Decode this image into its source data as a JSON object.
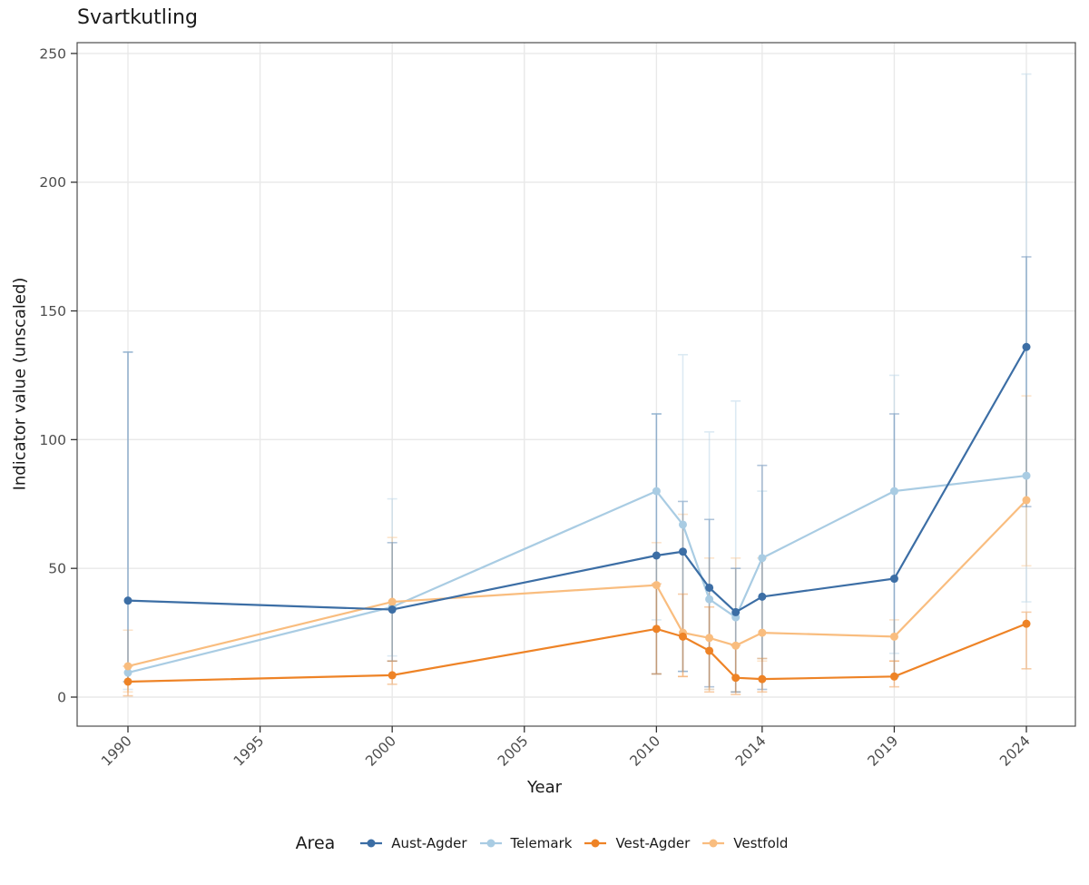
{
  "title": "Svartkutling",
  "axes": {
    "x_label": "Year",
    "y_label": "Indicator value (unscaled)",
    "x_ticks": [
      1990,
      1995,
      2000,
      2005,
      2010,
      2014,
      2019,
      2024
    ],
    "y_ticks": [
      0,
      50,
      100,
      150,
      200,
      250
    ],
    "x_range": [
      1988.1,
      2025.9
    ],
    "y_range": [
      0,
      250
    ]
  },
  "legend": {
    "title": "Area",
    "position": "bottom"
  },
  "style_colors": {
    "grid": "#e9e9e9",
    "panel_border": "#4d4d4d",
    "tick_mark": "#333333",
    "tick_text": "#4d4d4d",
    "error_bar_opacity": 0.4
  },
  "chart_data": {
    "type": "line",
    "title": "Svartkutling",
    "xlabel": "Year",
    "ylabel": "Indicator value (unscaled)",
    "grid": true,
    "legend_position": "bottom",
    "x": [
      1990,
      2000,
      2010,
      2011,
      2012,
      2013,
      2014,
      2019,
      2024
    ],
    "series": [
      {
        "name": "Aust-Agder",
        "color": "#3c6ea5",
        "values": [
          37.5,
          34,
          55,
          56.5,
          42.5,
          33,
          39,
          46,
          136
        ],
        "err_lo": [
          6,
          14,
          9,
          10,
          4,
          2,
          3,
          8,
          74
        ],
        "err_hi": [
          134,
          60,
          110,
          76,
          69,
          50,
          90,
          110,
          171
        ]
      },
      {
        "name": "Telemark",
        "color": "#a9cce3",
        "values": [
          9.5,
          35,
          80,
          67,
          38,
          31,
          54,
          80,
          86
        ],
        "err_lo": [
          3,
          16,
          30,
          10,
          3,
          2,
          15,
          17,
          37
        ],
        "err_hi": [
          134,
          77,
          110,
          133,
          103,
          115,
          80,
          125,
          242
        ]
      },
      {
        "name": "Vest-Agder",
        "color": "#ee8326",
        "values": [
          6,
          8.5,
          26.5,
          23.5,
          18,
          7.5,
          7,
          8,
          28.5
        ],
        "err_lo": [
          0.5,
          5,
          9,
          8,
          2,
          1,
          2,
          4,
          11
        ],
        "err_hi": [
          12,
          14,
          44,
          40,
          35,
          20,
          15,
          14,
          33
        ]
      },
      {
        "name": "Vestfold",
        "color": "#f9bd7f",
        "values": [
          12,
          37,
          43.5,
          25,
          23,
          20,
          25,
          23.5,
          76.5
        ],
        "err_lo": [
          2,
          14,
          9,
          8,
          3,
          2,
          14,
          14,
          51
        ],
        "err_hi": [
          26,
          62,
          60,
          71,
          54,
          54,
          54,
          30,
          117
        ]
      }
    ]
  }
}
